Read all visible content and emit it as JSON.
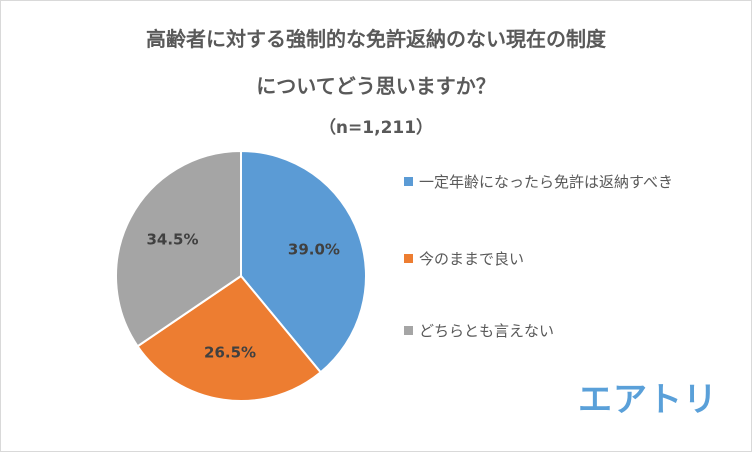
{
  "title_line1": "高齢者に対する強制的な免許返納のない現在の制度",
  "title_line2": "についてどう思いますか？",
  "subtitle": "（n=1,211）",
  "logo_text": "エアトリ",
  "chart_data": {
    "type": "pie",
    "title": "高齢者に対する強制的な免許返納のない現在の制度についてどう思いますか？",
    "subtitle": "（n=1,211）",
    "legend_position": "right",
    "slices": [
      {
        "label": "一定年齢になったら免許は返納すべき",
        "value": 39.0,
        "display": "39.0%",
        "color": "#5b9bd5"
      },
      {
        "label": "今のままで良い",
        "value": 26.5,
        "display": "26.5%",
        "color": "#ed7d31"
      },
      {
        "label": "どちらとも言えない",
        "value": 34.5,
        "display": "34.5%",
        "color": "#a5a5a5"
      }
    ]
  }
}
